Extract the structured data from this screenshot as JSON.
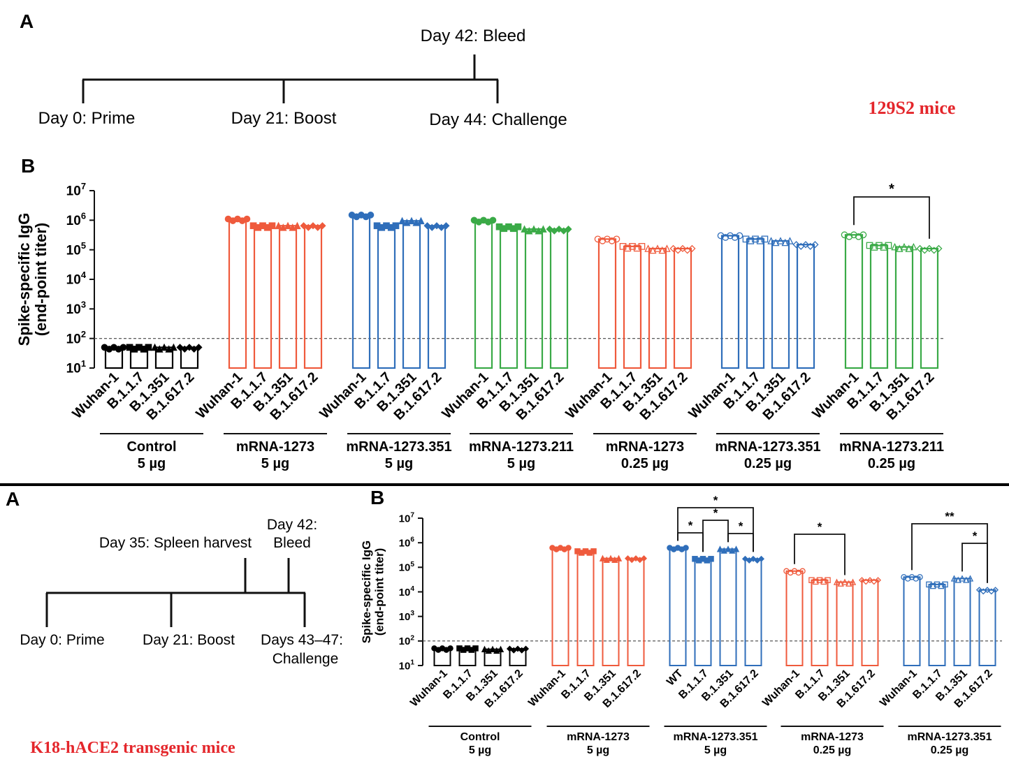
{
  "top": {
    "letter_a": "A",
    "letter_b": "B",
    "mouse_label": "129S2 mice",
    "timeline": {
      "day0": "Day 0: Prime",
      "day21": "Day 21: Boost",
      "day42": "Day 42: Bleed",
      "day44": "Day 44: Challenge"
    }
  },
  "bottom": {
    "letter_a": "A",
    "letter_b": "B",
    "mouse_label": "K18-hACE2 transgenic mice",
    "timeline": {
      "day0": "Day 0: Prime",
      "day21": "Day 21: Boost",
      "day35": "Day 35: Spleen harvest",
      "day42_line1": "Day 42:",
      "day42_line2": "Bleed",
      "days_challenge_line1": "Days 43–47:",
      "days_challenge_line2": "Challenge"
    }
  },
  "colors": {
    "control": "#000000",
    "red": "#ef5a3c",
    "blue": "#2f6eba",
    "green": "#3aaa47"
  },
  "chart_data": [
    {
      "type": "bar",
      "ylabel_line1": "Spike-specific IgG",
      "ylabel_line2": "(end-point titer)",
      "yscale": "log",
      "ylim": [
        10,
        10000000
      ],
      "yticks": [
        {
          "base": "10",
          "exp": "1"
        },
        {
          "base": "10",
          "exp": "2"
        },
        {
          "base": "10",
          "exp": "3"
        },
        {
          "base": "10",
          "exp": "4"
        },
        {
          "base": "10",
          "exp": "5"
        },
        {
          "base": "10",
          "exp": "6"
        },
        {
          "base": "10",
          "exp": "7"
        }
      ],
      "limit_of_detection": 100,
      "groups": [
        {
          "line1": "Control",
          "line2": "5 µg",
          "color": "#000000",
          "categories": [
            "Wuhan-1",
            "B.1.1.7",
            "B.1.351",
            "B.1.617.2"
          ],
          "values": [
            50,
            50,
            50,
            50
          ]
        },
        {
          "line1": "mRNA-1273",
          "line2": "5 µg",
          "color": "#ef5a3c",
          "categories": [
            "Wuhan-1",
            "B.1.1.7",
            "B.1.351",
            "B.1.617.2"
          ],
          "values": [
            1100000,
            650000,
            650000,
            650000
          ]
        },
        {
          "line1": "mRNA-1273.351",
          "line2": "5 µg",
          "color": "#2f6eba",
          "categories": [
            "Wuhan-1",
            "B.1.1.7",
            "B.1.351",
            "B.1.617.2"
          ],
          "values": [
            1500000,
            650000,
            950000,
            650000
          ]
        },
        {
          "line1": "mRNA-1273.211",
          "line2": "5 µg",
          "color": "#3aaa47",
          "categories": [
            "Wuhan-1",
            "B.1.1.7",
            "B.1.351",
            "B.1.617.2"
          ],
          "values": [
            1000000,
            600000,
            500000,
            500000
          ]
        },
        {
          "line1": "mRNA-1273",
          "line2": "0.25 µg",
          "color": "#ef5a3c",
          "categories": [
            "Wuhan-1",
            "B.1.1.7",
            "B.1.351",
            "B.1.617.2"
          ],
          "values": [
            230000,
            130000,
            110000,
            110000
          ]
        },
        {
          "line1": "mRNA-1273.351",
          "line2": "0.25 µg",
          "color": "#2f6eba",
          "categories": [
            "Wuhan-1",
            "B.1.1.7",
            "B.1.351",
            "B.1.617.2"
          ],
          "values": [
            300000,
            230000,
            200000,
            150000
          ]
        },
        {
          "line1": "mRNA-1273.211",
          "line2": "0.25 µg",
          "color": "#3aaa47",
          "categories": [
            "Wuhan-1",
            "B.1.1.7",
            "B.1.351",
            "B.1.617.2"
          ],
          "values": [
            320000,
            140000,
            125000,
            110000
          ]
        }
      ],
      "significance": [
        {
          "group": 6,
          "from": 0,
          "to": 3,
          "label": "*"
        }
      ]
    },
    {
      "type": "bar",
      "ylabel_line1": "Spike-specific IgG",
      "ylabel_line2": "(end-point titer)",
      "yscale": "log",
      "ylim": [
        10,
        10000000
      ],
      "yticks": [
        {
          "base": "10",
          "exp": "1"
        },
        {
          "base": "10",
          "exp": "2"
        },
        {
          "base": "10",
          "exp": "3"
        },
        {
          "base": "10",
          "exp": "4"
        },
        {
          "base": "10",
          "exp": "5"
        },
        {
          "base": "10",
          "exp": "6"
        },
        {
          "base": "10",
          "exp": "7"
        }
      ],
      "limit_of_detection": 100,
      "groups": [
        {
          "line1": "Control",
          "line2": "5 µg",
          "color": "#000000",
          "categories": [
            "Wuhan-1",
            "B.1.1.7",
            "B.1.351",
            "B.1.617.2"
          ],
          "values": [
            50,
            50,
            46,
            48
          ]
        },
        {
          "line1": "mRNA-1273",
          "line2": "5 µg",
          "color": "#ef5a3c",
          "categories": [
            "Wuhan-1",
            "B.1.1.7",
            "B.1.351",
            "B.1.617.2"
          ],
          "values": [
            620000,
            450000,
            230000,
            230000
          ]
        },
        {
          "line1": "mRNA-1273.351",
          "line2": "5 µg",
          "color": "#2f6eba",
          "categories": [
            "WT",
            "B.1.1.7",
            "B.1.351",
            "B.1.617.2"
          ],
          "values": [
            620000,
            220000,
            550000,
            220000
          ]
        },
        {
          "line1": "mRNA-1273",
          "line2": "0.25 µg",
          "color": "#ef5a3c",
          "categories": [
            "Wuhan-1",
            "B.1.1.7",
            "B.1.351",
            "B.1.617.2"
          ],
          "values": [
            70000,
            30000,
            25000,
            30000
          ]
        },
        {
          "line1": "mRNA-1273.351",
          "line2": "0.25 µg",
          "color": "#2f6eba",
          "categories": [
            "Wuhan-1",
            "B.1.1.7",
            "B.1.351",
            "B.1.617.2"
          ],
          "values": [
            40000,
            20000,
            35000,
            12000
          ]
        }
      ],
      "significance": [
        {
          "group": 2,
          "from": 0,
          "to": 3,
          "label": "*"
        },
        {
          "group": 2,
          "from": 0,
          "to": 1,
          "label": "*"
        },
        {
          "group": 2,
          "from": 1,
          "to": 2,
          "label": "*"
        },
        {
          "group": 2,
          "from": 2,
          "to": 3,
          "label": "*"
        },
        {
          "group": 3,
          "from": 0,
          "to": 2,
          "label": "*"
        },
        {
          "group": 4,
          "from": 0,
          "to": 3,
          "label": "**"
        },
        {
          "group": 4,
          "from": 2,
          "to": 3,
          "label": "*"
        }
      ]
    }
  ]
}
